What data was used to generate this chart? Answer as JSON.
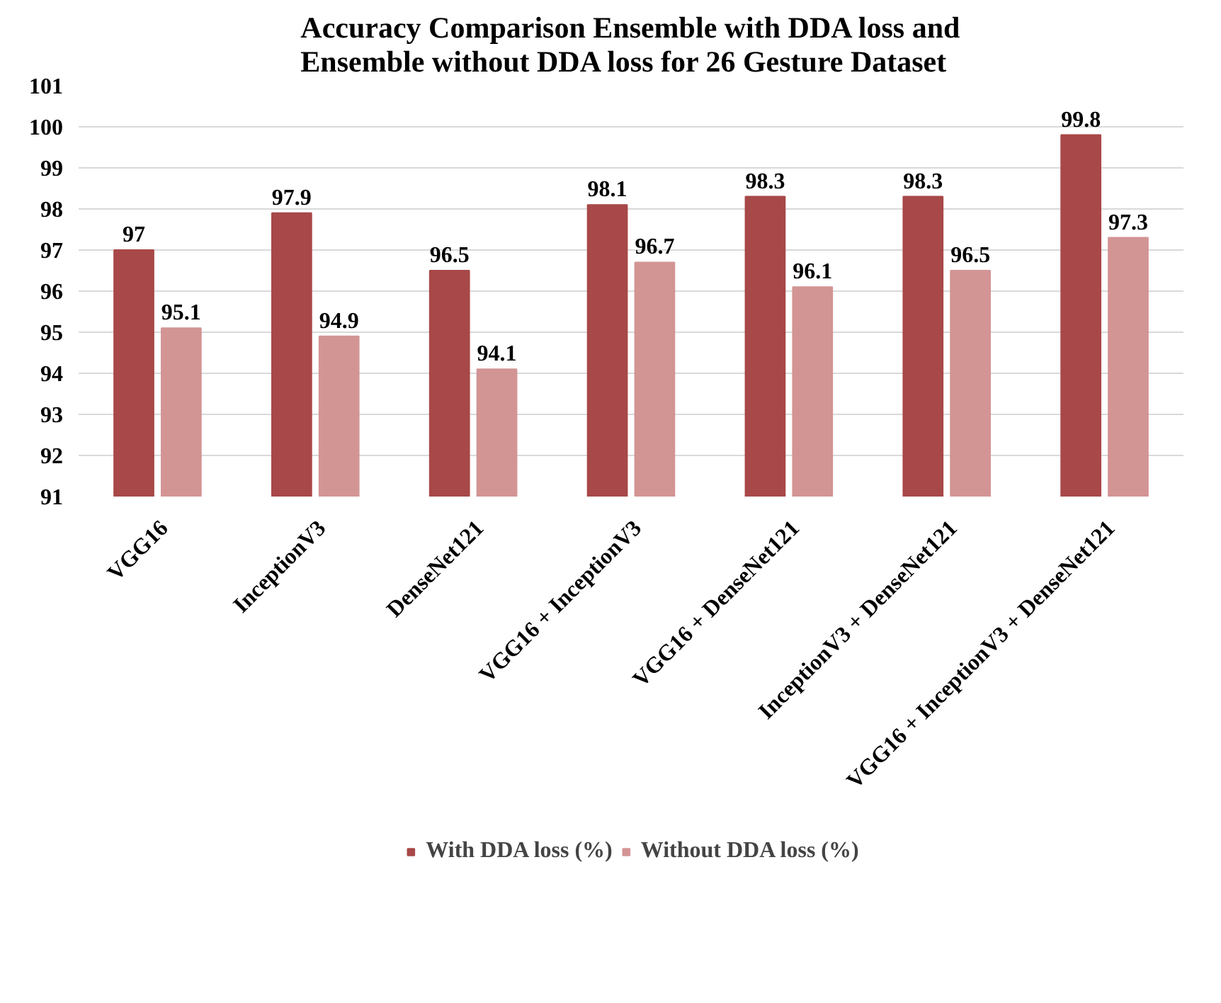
{
  "chart_data": {
    "type": "bar",
    "title": "Accuracy Comparison Ensemble with DDA loss and Ensemble without DDA loss for 26 Gesture Dataset",
    "categories": [
      "VGG16",
      "InceptionV3",
      "DenseNet121",
      "VGG16 + InceptionV3",
      "VGG16 + DenseNet121",
      "InceptionV3 + DenseNet121",
      "VGG16 + InceptionV3 + DenseNet121"
    ],
    "series": [
      {
        "name": "With DDA loss (%)",
        "color": "#a84848",
        "values": [
          97,
          97.9,
          96.5,
          98.1,
          98.3,
          98.3,
          99.8
        ]
      },
      {
        "name": "Without DDA loss (%)",
        "color": "#d39494",
        "values": [
          95.1,
          94.9,
          94.1,
          96.7,
          96.1,
          96.5,
          97.3
        ]
      }
    ],
    "ylim": [
      91,
      101
    ],
    "yticks": [
      91,
      92,
      93,
      94,
      95,
      96,
      97,
      98,
      99,
      100,
      101
    ],
    "grid": "y",
    "legend": "bottom",
    "data_labels": true
  }
}
